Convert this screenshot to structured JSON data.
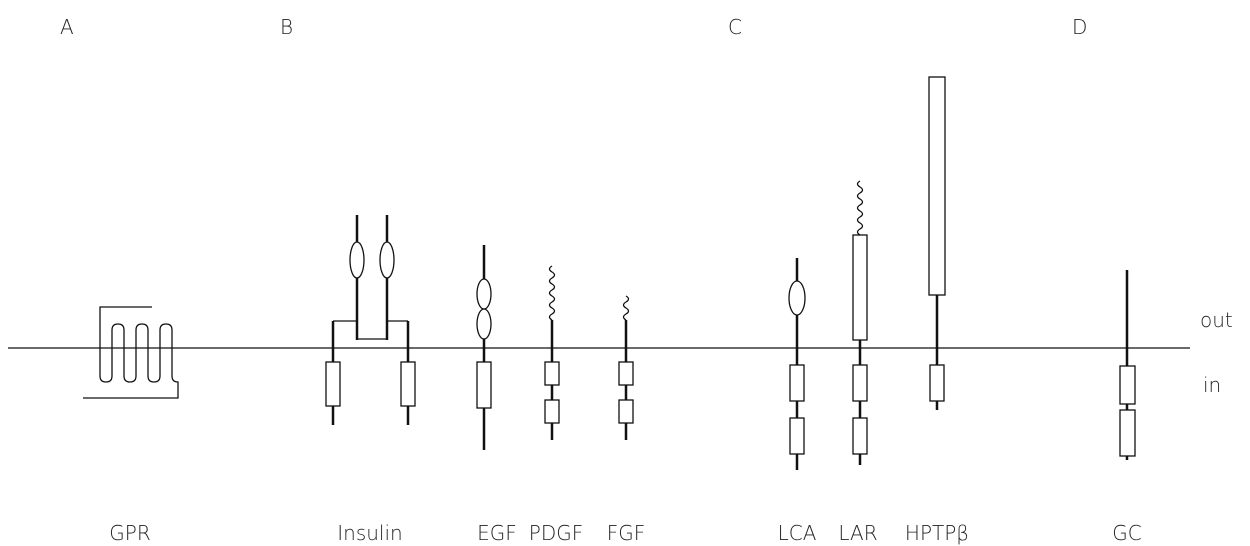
{
  "panels": [
    "A",
    "B",
    "C",
    "D"
  ],
  "receptors": [
    "GPR",
    "Insulin",
    "EGF",
    "PDGF",
    "FGF",
    "LCA",
    "LAR",
    "HPTPβ",
    "GC"
  ],
  "sides": {
    "out": "out",
    "in": "in"
  }
}
